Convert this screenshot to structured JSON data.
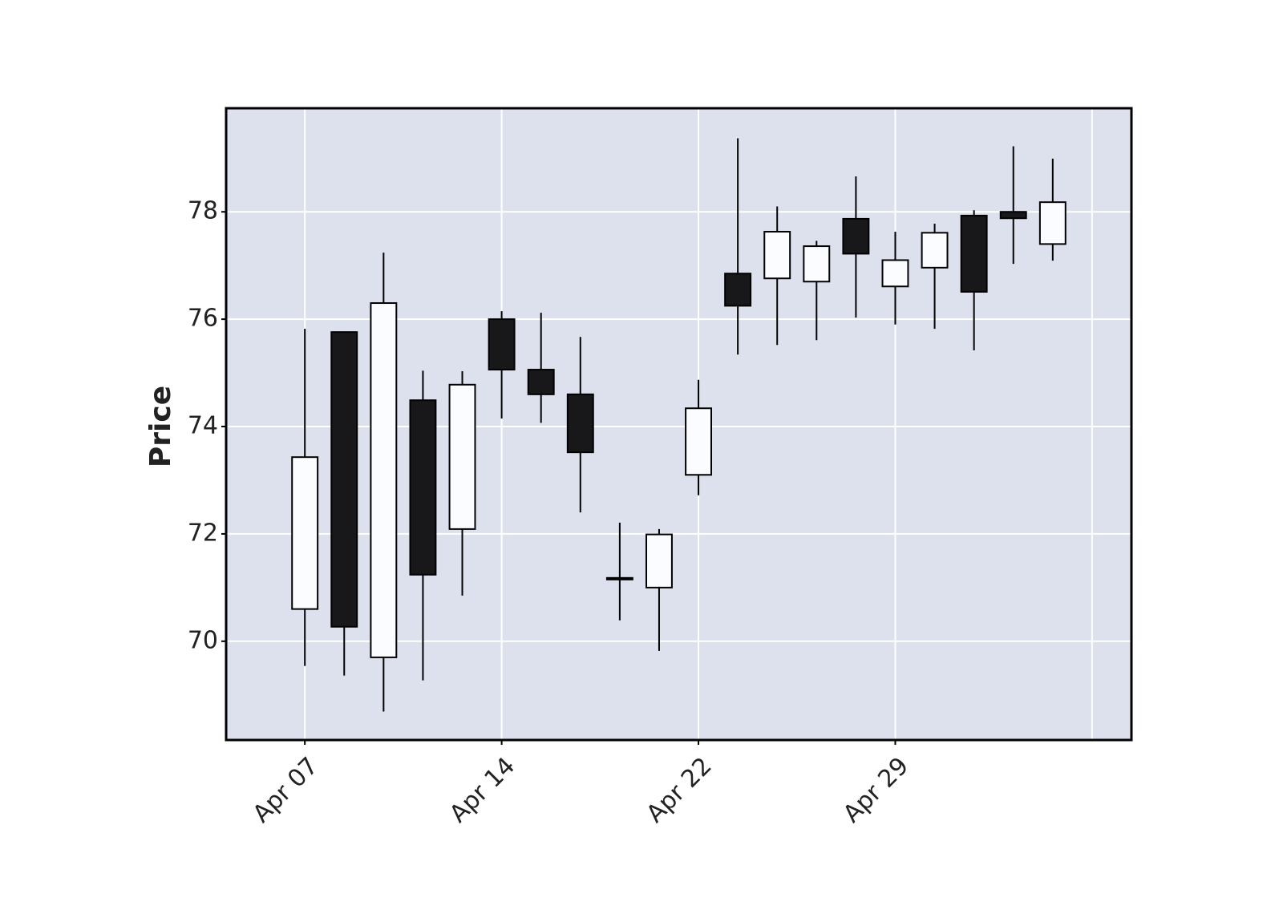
{
  "chart_data": {
    "type": "candlestick",
    "y_label": "Price",
    "categories": [
      "Apr 07",
      null,
      null,
      null,
      null,
      "Apr 14",
      null,
      null,
      null,
      null,
      "Apr 22",
      null,
      null,
      null,
      null,
      "Apr 29",
      null,
      null,
      null,
      null
    ],
    "open": [
      70.6,
      75.76,
      69.7,
      74.49,
      72.09,
      76.0,
      75.06,
      74.6,
      71.18,
      71.0,
      73.1,
      76.85,
      76.76,
      76.7,
      77.87,
      76.61,
      76.96,
      77.93,
      78.0,
      77.4
    ],
    "high": [
      75.82,
      75.76,
      77.24,
      75.04,
      75.03,
      76.15,
      76.12,
      75.67,
      72.21,
      72.09,
      74.87,
      79.37,
      78.1,
      77.46,
      78.66,
      77.63,
      77.78,
      78.03,
      79.22,
      78.99
    ],
    "low": [
      69.54,
      69.36,
      68.69,
      69.27,
      70.85,
      74.15,
      74.07,
      72.4,
      70.39,
      69.82,
      72.72,
      75.34,
      75.52,
      75.61,
      76.03,
      75.9,
      75.82,
      75.42,
      77.03,
      77.09
    ],
    "close": [
      73.43,
      70.27,
      76.3,
      71.24,
      74.78,
      75.06,
      74.6,
      73.52,
      71.16,
      71.99,
      74.34,
      76.25,
      77.63,
      77.36,
      77.22,
      77.1,
      77.61,
      76.51,
      77.88,
      78.18
    ],
    "up_color": "#fafcff",
    "down_color": "#18181a",
    "background": "#dce1ed",
    "ylim": [
      68.16,
      79.93
    ],
    "yticks": [
      70,
      72,
      74,
      76,
      78
    ],
    "grid": true
  }
}
